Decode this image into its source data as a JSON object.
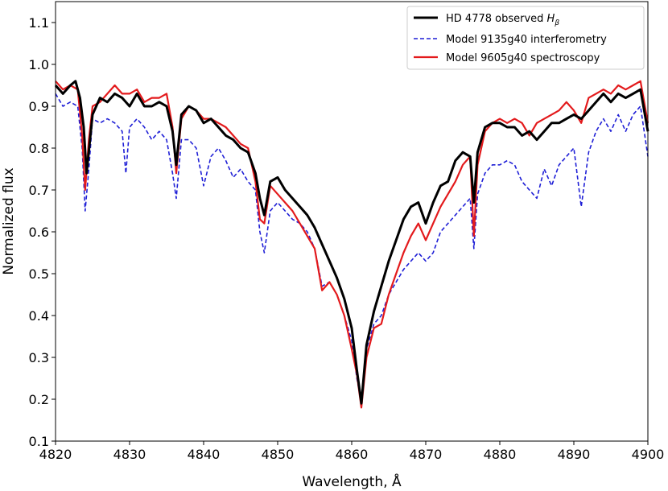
{
  "chart_data": {
    "type": "line",
    "title": "",
    "xlabel": "Wavelength, Å",
    "ylabel": "Normalized flux",
    "xlim": [
      4820,
      4900
    ],
    "ylim": [
      0.1,
      1.15
    ],
    "x_ticks": [
      "4820",
      "4830",
      "4840",
      "4850",
      "4860",
      "4870",
      "4880",
      "4890",
      "4900"
    ],
    "y_ticks": [
      "0.1",
      "0.2",
      "0.3",
      "0.4",
      "0.5",
      "0.6",
      "0.7",
      "0.8",
      "0.9",
      "1.0",
      "1.1"
    ],
    "grid": false,
    "legend_position": "top-right",
    "legend": {
      "observed_text": "HD 4778 observed ",
      "observed_symbol": "H",
      "observed_subscript": "β",
      "interferometry": "Model 9135g40 interferometry",
      "spectroscopy": "Model 9605g40 spectroscopy"
    },
    "series": [
      {
        "name": "HD 4778 observed Hβ",
        "color": "#000000",
        "style": "solid",
        "x": [
          4820,
          4821,
          4822,
          4822.7,
          4823.3,
          4823.8,
          4824.2,
          4825,
          4826,
          4827,
          4828,
          4829,
          4830,
          4831,
          4832,
          4833,
          4834,
          4835,
          4835.8,
          4836.3,
          4837,
          4838,
          4839,
          4840,
          4841,
          4842,
          4843,
          4844,
          4845,
          4846,
          4847,
          4847.6,
          4848.2,
          4849,
          4850,
          4851,
          4852,
          4853,
          4854,
          4855,
          4856,
          4857,
          4858,
          4859,
          4860,
          4860.7,
          4861.3,
          4862,
          4863,
          4864,
          4865,
          4866,
          4867,
          4868,
          4869,
          4870,
          4871,
          4872,
          4873,
          4874,
          4875,
          4876,
          4876.5,
          4877,
          4878,
          4879,
          4880,
          4881,
          4882,
          4883,
          4884,
          4885,
          4886,
          4887,
          4888,
          4889,
          4890,
          4891,
          4892,
          4893,
          4894,
          4895,
          4896,
          4897,
          4898,
          4899,
          4900
        ],
        "y": [
          0.95,
          0.93,
          0.95,
          0.96,
          0.92,
          0.85,
          0.74,
          0.88,
          0.92,
          0.91,
          0.93,
          0.92,
          0.9,
          0.93,
          0.9,
          0.9,
          0.91,
          0.9,
          0.84,
          0.76,
          0.88,
          0.9,
          0.89,
          0.86,
          0.87,
          0.85,
          0.83,
          0.82,
          0.8,
          0.79,
          0.74,
          0.68,
          0.64,
          0.72,
          0.73,
          0.7,
          0.68,
          0.66,
          0.64,
          0.61,
          0.57,
          0.53,
          0.49,
          0.44,
          0.37,
          0.27,
          0.19,
          0.33,
          0.41,
          0.47,
          0.53,
          0.58,
          0.63,
          0.66,
          0.67,
          0.62,
          0.67,
          0.71,
          0.72,
          0.77,
          0.79,
          0.78,
          0.67,
          0.79,
          0.85,
          0.86,
          0.86,
          0.85,
          0.85,
          0.83,
          0.84,
          0.82,
          0.84,
          0.86,
          0.86,
          0.87,
          0.88,
          0.87,
          0.89,
          0.91,
          0.93,
          0.91,
          0.93,
          0.92,
          0.93,
          0.94,
          0.84
        ]
      },
      {
        "name": "Model 9135g40 interferometry",
        "color": "#1f1fd6",
        "style": "dashed",
        "x": [
          4820,
          4821,
          4822,
          4823,
          4823.6,
          4824,
          4824.5,
          4825,
          4826,
          4827,
          4828,
          4829,
          4829.5,
          4830,
          4831,
          4832,
          4833,
          4834,
          4835,
          4835.8,
          4836.3,
          4837,
          4838,
          4839,
          4840,
          4841,
          4842,
          4843,
          4844,
          4845,
          4846,
          4847,
          4847.6,
          4848.2,
          4849,
          4850,
          4851,
          4852,
          4853,
          4854,
          4855,
          4856,
          4857,
          4858,
          4859,
          4860,
          4860.7,
          4861.3,
          4862,
          4863,
          4864,
          4865,
          4866,
          4867,
          4868,
          4869,
          4870,
          4871,
          4872,
          4873,
          4874,
          4875,
          4876,
          4876.5,
          4877,
          4878,
          4879,
          4880,
          4881,
          4882,
          4883,
          4884,
          4885,
          4886,
          4887,
          4888,
          4889,
          4890,
          4891,
          4892,
          4893,
          4894,
          4895,
          4896,
          4897,
          4898,
          4899,
          4900
        ],
        "y": [
          0.93,
          0.9,
          0.91,
          0.9,
          0.8,
          0.65,
          0.75,
          0.87,
          0.86,
          0.87,
          0.86,
          0.84,
          0.74,
          0.85,
          0.87,
          0.85,
          0.82,
          0.84,
          0.82,
          0.74,
          0.68,
          0.82,
          0.82,
          0.8,
          0.71,
          0.78,
          0.8,
          0.77,
          0.73,
          0.75,
          0.72,
          0.7,
          0.6,
          0.55,
          0.65,
          0.67,
          0.65,
          0.63,
          0.62,
          0.6,
          0.56,
          0.47,
          0.48,
          0.45,
          0.4,
          0.34,
          0.25,
          0.19,
          0.32,
          0.38,
          0.4,
          0.45,
          0.48,
          0.51,
          0.53,
          0.55,
          0.53,
          0.55,
          0.6,
          0.62,
          0.64,
          0.66,
          0.68,
          0.56,
          0.69,
          0.74,
          0.76,
          0.76,
          0.77,
          0.76,
          0.72,
          0.7,
          0.68,
          0.75,
          0.71,
          0.76,
          0.78,
          0.8,
          0.66,
          0.79,
          0.84,
          0.87,
          0.84,
          0.88,
          0.84,
          0.88,
          0.9,
          0.78
        ]
      },
      {
        "name": "Model 9605g40 spectroscopy",
        "color": "#e31a1c",
        "style": "solid",
        "x": [
          4820,
          4821,
          4822,
          4823,
          4823.6,
          4824,
          4824.5,
          4825,
          4826,
          4827,
          4828,
          4829,
          4830,
          4831,
          4832,
          4833,
          4834,
          4835,
          4835.8,
          4836.3,
          4837,
          4838,
          4839,
          4840,
          4841,
          4842,
          4843,
          4844,
          4845,
          4846,
          4847,
          4847.6,
          4848.2,
          4849,
          4850,
          4851,
          4852,
          4853,
          4854,
          4855,
          4856,
          4857,
          4858,
          4859,
          4860,
          4860.7,
          4861.3,
          4862,
          4863,
          4864,
          4865,
          4866,
          4867,
          4868,
          4869,
          4870,
          4871,
          4872,
          4873,
          4874,
          4875,
          4876,
          4876.5,
          4877,
          4878,
          4879,
          4880,
          4881,
          4882,
          4883,
          4884,
          4885,
          4886,
          4887,
          4888,
          4889,
          4890,
          4891,
          4892,
          4893,
          4894,
          4895,
          4896,
          4897,
          4898,
          4899,
          4900
        ],
        "y": [
          0.96,
          0.94,
          0.95,
          0.94,
          0.83,
          0.7,
          0.82,
          0.9,
          0.91,
          0.93,
          0.95,
          0.93,
          0.93,
          0.94,
          0.91,
          0.92,
          0.92,
          0.93,
          0.85,
          0.74,
          0.87,
          0.9,
          0.89,
          0.87,
          0.87,
          0.86,
          0.85,
          0.83,
          0.81,
          0.8,
          0.72,
          0.63,
          0.62,
          0.71,
          0.69,
          0.67,
          0.65,
          0.62,
          0.59,
          0.56,
          0.46,
          0.48,
          0.45,
          0.4,
          0.32,
          0.26,
          0.18,
          0.3,
          0.37,
          0.38,
          0.45,
          0.5,
          0.55,
          0.59,
          0.62,
          0.58,
          0.62,
          0.66,
          0.69,
          0.72,
          0.76,
          0.78,
          0.59,
          0.76,
          0.84,
          0.86,
          0.87,
          0.86,
          0.87,
          0.86,
          0.83,
          0.86,
          0.87,
          0.88,
          0.89,
          0.91,
          0.89,
          0.86,
          0.92,
          0.93,
          0.94,
          0.93,
          0.95,
          0.94,
          0.95,
          0.96,
          0.86
        ]
      }
    ]
  }
}
